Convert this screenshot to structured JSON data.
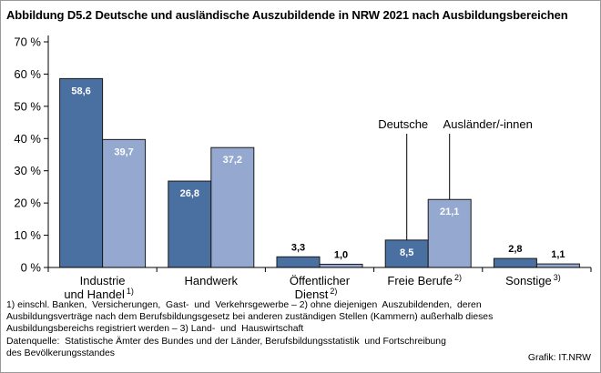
{
  "chart_data": {
    "type": "bar",
    "title": "Abbildung D5.2  Deutsche und ausländische Auszubildende in NRW 2021 nach Ausbildungsbereichen",
    "xlabel": "",
    "ylabel": "",
    "ylim": [
      0,
      70
    ],
    "ytick_values": [
      0,
      10,
      20,
      30,
      40,
      50,
      60,
      70
    ],
    "ytick_labels": [
      "0 %",
      "10 %",
      "20 %",
      "30 %",
      "40 %",
      "50 %",
      "60 %",
      "70 %"
    ],
    "grid": false,
    "legend_placement": "labels above Freie Berufe bars",
    "categories": [
      {
        "lines": [
          "Industrie",
          "und Handel"
        ],
        "note": "1)"
      },
      {
        "lines": [
          "Handwerk"
        ],
        "note": ""
      },
      {
        "lines": [
          "Öffentlicher",
          "Dienst"
        ],
        "note": "2)"
      },
      {
        "lines": [
          "Freie Berufe"
        ],
        "note": "2)"
      },
      {
        "lines": [
          "Sonstige"
        ],
        "note": "3)"
      }
    ],
    "series": [
      {
        "name": "Deutsche",
        "color": "#4a6fa1",
        "label_color": "#ffffff",
        "values": [
          58.6,
          26.8,
          3.3,
          8.5,
          2.8
        ],
        "labels": [
          "58,6",
          "26,8",
          "3,3",
          "8,5",
          "2,8"
        ]
      },
      {
        "name": "Ausländer/-innen",
        "color": "#95a8d0",
        "label_color": "#ffffff",
        "values": [
          39.7,
          37.2,
          1.0,
          21.1,
          1.1
        ],
        "labels": [
          "39,7",
          "37,2",
          "1,0",
          "21,1",
          "1,1"
        ]
      }
    ]
  },
  "footnotes": [
    "1) einschl. Banken,  Versicherungen,  Gast-  und  Verkehrsgewerbe – 2) ohne diejenigen  Auszubildenden,  deren",
    "Ausbildungsverträge nach dem Berufsbildungsgesetz bei anderen zuständigen Stellen (Kammern) außerhalb dieses",
    "Ausbildungsbereichs registriert werden – 3) Land-  und  Hauswirtschaft",
    "Datenquelle:  Statistische Ämter des Bundes und der Länder, Berufsbildungsstatistik  und Fortschreibung",
    "des Bevölkerungsstandes"
  ],
  "credit": "Grafik: IT.NRW",
  "colors": {
    "deutsche": "#4a6fa1",
    "auslaender": "#95a8d0",
    "bar_outline": "#1a1a1a"
  }
}
